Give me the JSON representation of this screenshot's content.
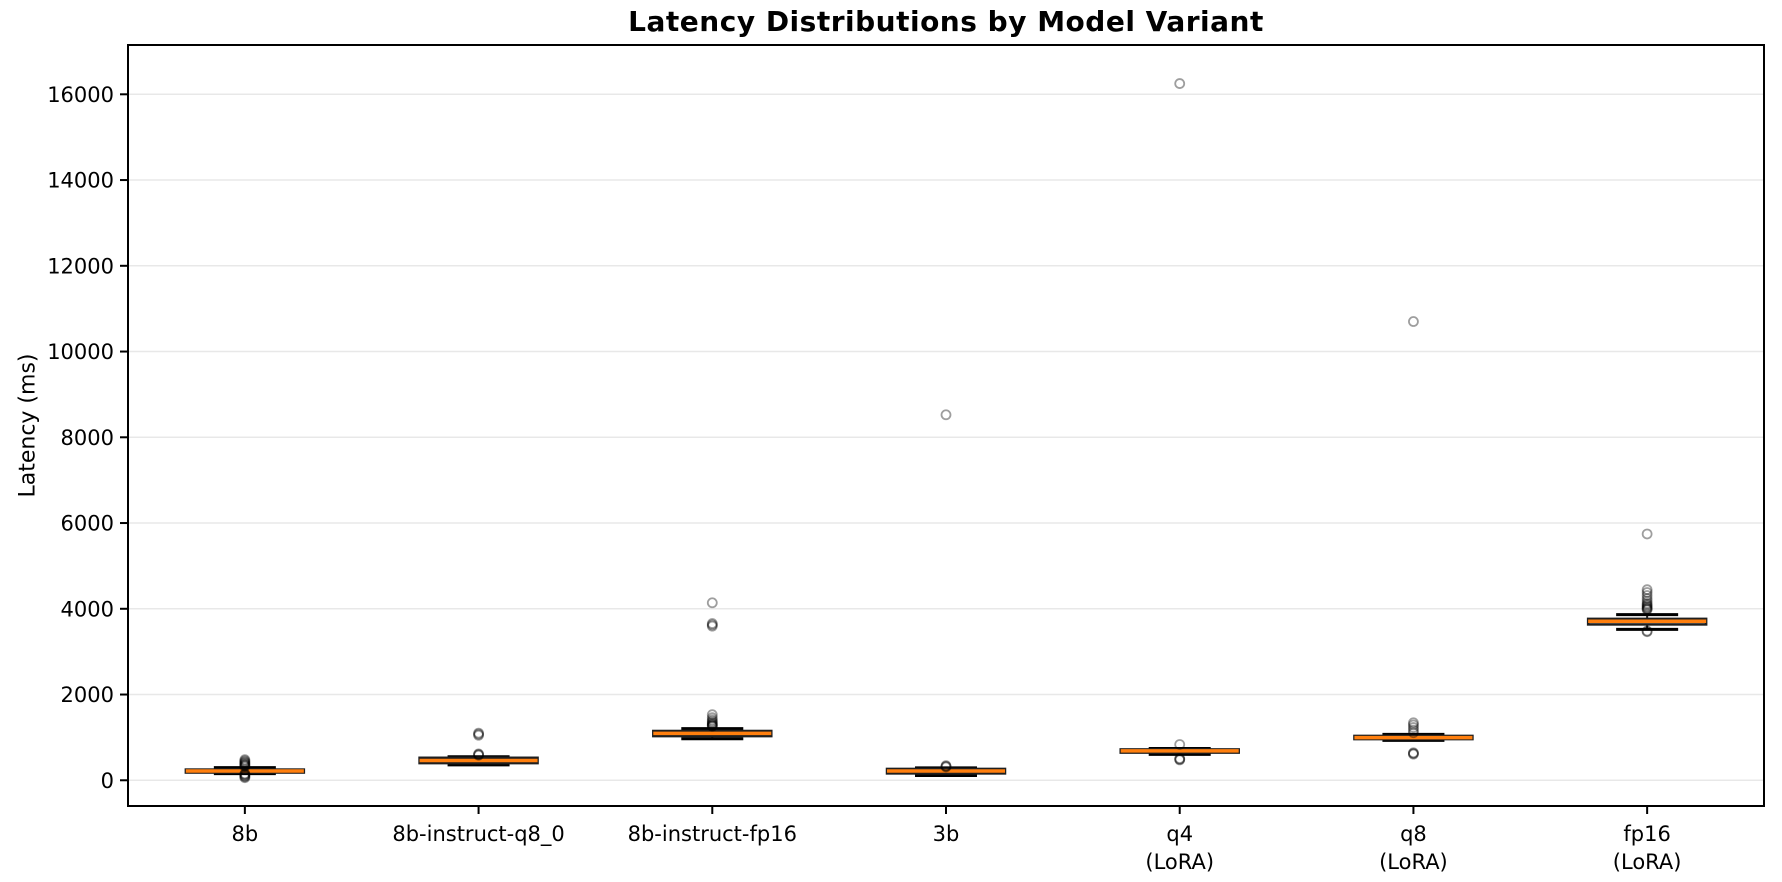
{
  "chart_data": {
    "type": "box",
    "title": "Latency Distributions by Model Variant",
    "ylabel": "Latency (ms)",
    "unit": "ms",
    "ylim": [
      -600,
      17150
    ],
    "yticks": [
      0,
      2000,
      4000,
      6000,
      8000,
      10000,
      12000,
      14000,
      16000
    ],
    "grid": "horizontal",
    "legend_position": "none",
    "categories": [
      [
        "8b"
      ],
      [
        "8b-instruct-q8_0"
      ],
      [
        "8b-instruct-fp16"
      ],
      [
        "3b"
      ],
      [
        "q4",
        "(LoRA)"
      ],
      [
        "q8",
        "(LoRA)"
      ],
      [
        "fp16",
        "(LoRA)"
      ]
    ],
    "series": [
      {
        "name": "8b",
        "whislo": 155,
        "q1": 180,
        "med": 215,
        "q3": 250,
        "whishi": 295,
        "fliers": [
          60,
          80,
          100,
          120,
          140,
          150,
          320,
          340,
          355,
          370,
          390,
          410,
          430,
          455,
          480
        ]
      },
      {
        "name": "8b-instruct-q8_0",
        "whislo": 360,
        "q1": 400,
        "med": 460,
        "q3": 525,
        "whishi": 550,
        "fliers": [
          585,
          600,
          615,
          1050,
          1075,
          1100
        ]
      },
      {
        "name": "8b-instruct-fp16",
        "whislo": 970,
        "q1": 1030,
        "med": 1095,
        "q3": 1150,
        "whishi": 1205,
        "fliers": [
          1260,
          1270,
          1285,
          1300,
          1320,
          1345,
          1375,
          1410,
          1460,
          1530,
          3595,
          3625,
          3655,
          4140
        ]
      },
      {
        "name": "3b",
        "whislo": 110,
        "q1": 160,
        "med": 215,
        "q3": 265,
        "whishi": 290,
        "fliers": [
          310,
          325,
          340,
          8525
        ]
      },
      {
        "name": "q4 (LoRA)",
        "whislo": 605,
        "q1": 645,
        "med": 685,
        "q3": 720,
        "whishi": 740,
        "fliers": [
          475,
          490,
          505,
          835,
          16250
        ]
      },
      {
        "name": "q8 (LoRA)",
        "whislo": 930,
        "q1": 960,
        "med": 995,
        "q3": 1035,
        "whishi": 1070,
        "fliers": [
          610,
          625,
          640,
          1110,
          1170,
          1230,
          1290,
          1340,
          10700
        ]
      },
      {
        "name": "fp16 (LoRA)",
        "whislo": 3520,
        "q1": 3635,
        "med": 3710,
        "q3": 3765,
        "whishi": 3865,
        "fliers": [
          3465,
          3480,
          3980,
          3995,
          4015,
          4040,
          4065,
          4095,
          4125,
          4180,
          4240,
          4310,
          4380,
          4445,
          5745
        ]
      }
    ],
    "colors": {
      "median": "#ff7f0e",
      "box_edge": "#1f1f1f",
      "whisker": "#1f1f1f",
      "cap": "#000000",
      "frame": "#000000",
      "grid": "#e8e8e8",
      "flier_edge": "rgba(0,0,0,0.38)",
      "background": "#ffffff"
    }
  }
}
